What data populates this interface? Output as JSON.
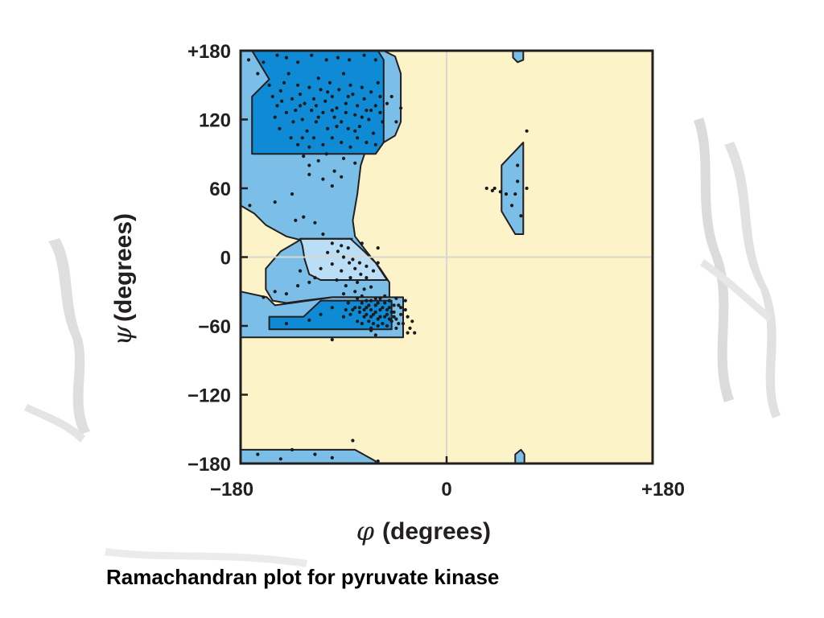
{
  "caption": "Ramachandran plot for pyruvate kinase",
  "chart_data": {
    "type": "scatter",
    "title": "",
    "xlabel": {
      "symbol": "φ",
      "text": "(degrees)"
    },
    "ylabel": {
      "symbol": "ψ",
      "text": "(degrees)"
    },
    "xlim": [
      -180,
      180
    ],
    "ylim": [
      -180,
      180
    ],
    "x_ticks": [
      {
        "value": -180,
        "label": "−180"
      },
      {
        "value": 0,
        "label": "0"
      },
      {
        "value": 180,
        "label": "+180"
      }
    ],
    "y_ticks": [
      {
        "value": 180,
        "label": "+180"
      },
      {
        "value": 120,
        "label": "120"
      },
      {
        "value": 60,
        "label": "60"
      },
      {
        "value": 0,
        "label": "0"
      },
      {
        "value": -60,
        "label": "−60"
      },
      {
        "value": -120,
        "label": "−120"
      },
      {
        "value": -180,
        "label": "−180"
      }
    ],
    "zero_lines": true,
    "colors": {
      "background": "#fdf3c8",
      "allowed": "#7bbfe8",
      "bridge": "#b9def6",
      "favored": "#0f8ad4",
      "outline": "#231f20",
      "points": "#1a1a1a",
      "zero_line": "#d8d8d0"
    },
    "regions": [
      {
        "name": "allowed-beta-alpha",
        "level": "allowed",
        "path": [
          [
            -180,
            180
          ],
          [
            -155,
            180
          ],
          [
            -135,
            180
          ],
          [
            -55,
            180
          ],
          [
            -45,
            175
          ],
          [
            -40,
            160
          ],
          [
            -40,
            118
          ],
          [
            -45,
            106
          ],
          [
            -55,
            100
          ],
          [
            -70,
            95
          ],
          [
            -75,
            80
          ],
          [
            -78,
            55
          ],
          [
            -82,
            32
          ],
          [
            -80,
            18
          ],
          [
            -70,
            5
          ],
          [
            -58,
            -10
          ],
          [
            -50,
            -22
          ],
          [
            -50,
            -35
          ],
          [
            -100,
            -35
          ],
          [
            -125,
            -38
          ],
          [
            -140,
            -40
          ],
          [
            -152,
            -38
          ],
          [
            -158,
            -28
          ],
          [
            -158,
            -10
          ],
          [
            -145,
            5
          ],
          [
            -128,
            15
          ],
          [
            -140,
            18
          ],
          [
            -158,
            28
          ],
          [
            -168,
            38
          ],
          [
            -180,
            45
          ]
        ]
      },
      {
        "name": "allowed-alpha-lower",
        "level": "allowed",
        "path": [
          [
            -180,
            -30
          ],
          [
            -157,
            -35
          ],
          [
            -150,
            -42
          ],
          [
            -135,
            -40
          ],
          [
            -100,
            -35
          ],
          [
            -38,
            -35
          ],
          [
            -38,
            -70
          ],
          [
            -180,
            -70
          ]
        ]
      },
      {
        "name": "allowed-beta-bottom",
        "level": "allowed",
        "path": [
          [
            -180,
            -168
          ],
          [
            -115,
            -168
          ],
          [
            -80,
            -168
          ],
          [
            -62,
            -178
          ],
          [
            -62,
            -180
          ],
          [
            -180,
            -180
          ]
        ]
      },
      {
        "name": "allowed-left-handed",
        "level": "allowed",
        "path": [
          [
            48,
            80
          ],
          [
            67,
            100
          ],
          [
            67,
            20
          ],
          [
            60,
            20
          ],
          [
            48,
            40
          ]
        ]
      },
      {
        "name": "allowed-top-sliver",
        "level": "allowed",
        "path": [
          [
            58,
            180
          ],
          [
            67,
            180
          ],
          [
            67,
            172
          ],
          [
            62,
            170
          ],
          [
            58,
            174
          ]
        ]
      },
      {
        "name": "allowed-bottom-sliver",
        "level": "allowed",
        "path": [
          [
            60,
            -180
          ],
          [
            68,
            -180
          ],
          [
            68,
            -172
          ],
          [
            65,
            -168
          ],
          [
            60,
            -172
          ]
        ]
      },
      {
        "name": "bridge",
        "level": "bridge",
        "path": [
          [
            -128,
            16
          ],
          [
            -84,
            16
          ],
          [
            -72,
            5
          ],
          [
            -62,
            -5
          ],
          [
            -52,
            -20
          ],
          [
            -110,
            -20
          ],
          [
            -120,
            -15
          ],
          [
            -124,
            -2
          ],
          [
            -126,
            10
          ]
        ]
      },
      {
        "name": "favored-beta",
        "level": "favored",
        "path": [
          [
            -170,
            180
          ],
          [
            -60,
            180
          ],
          [
            -55,
            172
          ],
          [
            -55,
            100
          ],
          [
            -62,
            90
          ],
          [
            -170,
            90
          ],
          [
            -170,
            140
          ],
          [
            -160,
            150
          ],
          [
            -155,
            155
          ]
        ]
      },
      {
        "name": "favored-alpha",
        "level": "favored",
        "path": [
          [
            -110,
            -38
          ],
          [
            -48,
            -38
          ],
          [
            -48,
            -63
          ],
          [
            -155,
            -63
          ],
          [
            -155,
            -52
          ],
          [
            -125,
            -52
          ]
        ]
      }
    ],
    "internal_lines": [
      {
        "name": "contour-upper",
        "path": [
          [
            -128,
            16
          ],
          [
            -82,
            16
          ]
        ]
      },
      {
        "name": "contour-lower",
        "path": [
          [
            -110,
            -20
          ],
          [
            -52,
            -20
          ]
        ]
      }
    ],
    "points": [
      [
        -173,
        172
      ],
      [
        -160,
        170
      ],
      [
        -148,
        176
      ],
      [
        -140,
        174
      ],
      [
        -130,
        170
      ],
      [
        -118,
        176
      ],
      [
        -105,
        172
      ],
      [
        -95,
        174
      ],
      [
        -85,
        172
      ],
      [
        -72,
        176
      ],
      [
        -62,
        172
      ],
      [
        -165,
        160
      ],
      [
        -155,
        150
      ],
      [
        -152,
        140
      ],
      [
        -148,
        132
      ],
      [
        -145,
        145
      ],
      [
        -142,
        152
      ],
      [
        -138,
        160
      ],
      [
        -135,
        138
      ],
      [
        -132,
        128
      ],
      [
        -130,
        150
      ],
      [
        -128,
        142
      ],
      [
        -126,
        120
      ],
      [
        -124,
        134
      ],
      [
        -122,
        110
      ],
      [
        -120,
        148
      ],
      [
        -118,
        128
      ],
      [
        -116,
        138
      ],
      [
        -114,
        118
      ],
      [
        -112,
        156
      ],
      [
        -110,
        146
      ],
      [
        -108,
        126
      ],
      [
        -106,
        136
      ],
      [
        -104,
        112
      ],
      [
        -102,
        152
      ],
      [
        -100,
        140
      ],
      [
        -98,
        122
      ],
      [
        -96,
        130
      ],
      [
        -94,
        146
      ],
      [
        -92,
        118
      ],
      [
        -90,
        160
      ],
      [
        -88,
        134
      ],
      [
        -86,
        112
      ],
      [
        -84,
        150
      ],
      [
        -82,
        142
      ],
      [
        -80,
        124
      ],
      [
        -78,
        132
      ],
      [
        -76,
        114
      ],
      [
        -74,
        148
      ],
      [
        -72,
        138
      ],
      [
        -70,
        128
      ],
      [
        -68,
        120
      ],
      [
        -66,
        144
      ],
      [
        -64,
        108
      ],
      [
        -62,
        132
      ],
      [
        -60,
        152
      ],
      [
        -58,
        126
      ],
      [
        -56,
        118
      ],
      [
        -52,
        134
      ],
      [
        -48,
        140
      ],
      [
        -44,
        118
      ],
      [
        -40,
        130
      ],
      [
        -150,
        122
      ],
      [
        -146,
        112
      ],
      [
        -140,
        126
      ],
      [
        -136,
        104
      ],
      [
        -134,
        118
      ],
      [
        -130,
        98
      ],
      [
        -126,
        104
      ],
      [
        -120,
        96
      ],
      [
        -116,
        104
      ],
      [
        -108,
        98
      ],
      [
        -100,
        104
      ],
      [
        -92,
        100
      ],
      [
        -84,
        96
      ],
      [
        -78,
        104
      ],
      [
        -70,
        100
      ],
      [
        -62,
        98
      ],
      [
        -144,
        136
      ],
      [
        -114,
        132
      ],
      [
        -104,
        144
      ],
      [
        -96,
        114
      ],
      [
        -88,
        126
      ],
      [
        -80,
        110
      ],
      [
        -74,
        122
      ],
      [
        -66,
        128
      ],
      [
        -58,
        140
      ],
      [
        -128,
        132
      ],
      [
        -112,
        122
      ],
      [
        -100,
        128
      ],
      [
        -86,
        140
      ],
      [
        -125,
        88
      ],
      [
        -120,
        80
      ],
      [
        -112,
        84
      ],
      [
        -105,
        90
      ],
      [
        -98,
        75
      ],
      [
        -90,
        86
      ],
      [
        -80,
        82
      ],
      [
        -120,
        72
      ],
      [
        -100,
        62
      ],
      [
        -108,
        68
      ],
      [
        -92,
        70
      ],
      [
        -135,
        55
      ],
      [
        -150,
        48
      ],
      [
        -172,
        45
      ],
      [
        -125,
        35
      ],
      [
        -132,
        32
      ],
      [
        -115,
        30
      ],
      [
        -108,
        20
      ],
      [
        -100,
        12
      ],
      [
        -95,
        5
      ],
      [
        -90,
        0
      ],
      [
        -85,
        -5
      ],
      [
        -80,
        -10
      ],
      [
        -75,
        -15
      ],
      [
        -70,
        -8
      ],
      [
        -92,
        -12
      ],
      [
        -84,
        -18
      ],
      [
        -78,
        -22
      ],
      [
        -100,
        -6
      ],
      [
        -88,
        -25
      ],
      [
        -82,
        -2
      ],
      [
        -76,
        -5
      ],
      [
        -70,
        -18
      ],
      [
        -64,
        -12
      ],
      [
        -60,
        -5
      ],
      [
        -66,
        -26
      ],
      [
        -72,
        -28
      ],
      [
        -96,
        -20
      ],
      [
        -80,
        -30
      ],
      [
        -90,
        -32
      ],
      [
        -110,
        -10
      ],
      [
        -115,
        -18
      ],
      [
        -120,
        -22
      ],
      [
        -130,
        -25
      ],
      [
        -140,
        -32
      ],
      [
        -128,
        -12
      ],
      [
        -150,
        -30
      ],
      [
        -160,
        -35
      ],
      [
        -86,
        8
      ],
      [
        -92,
        10
      ],
      [
        -104,
        4
      ],
      [
        -60,
        8
      ],
      [
        -74,
        12
      ],
      [
        -78,
        -36
      ],
      [
        -74,
        -40
      ],
      [
        -70,
        -44
      ],
      [
        -66,
        -38
      ],
      [
        -62,
        -42
      ],
      [
        -58,
        -46
      ],
      [
        -54,
        -40
      ],
      [
        -50,
        -44
      ],
      [
        -46,
        -48
      ],
      [
        -42,
        -42
      ],
      [
        -76,
        -48
      ],
      [
        -72,
        -52
      ],
      [
        -68,
        -56
      ],
      [
        -64,
        -50
      ],
      [
        -60,
        -54
      ],
      [
        -56,
        -58
      ],
      [
        -52,
        -50
      ],
      [
        -48,
        -56
      ],
      [
        -44,
        -54
      ],
      [
        -40,
        -50
      ],
      [
        -80,
        -44
      ],
      [
        -84,
        -50
      ],
      [
        -86,
        -40
      ],
      [
        -74,
        -34
      ],
      [
        -70,
        -38
      ],
      [
        -66,
        -46
      ],
      [
        -62,
        -48
      ],
      [
        -58,
        -36
      ],
      [
        -54,
        -52
      ],
      [
        -50,
        -38
      ],
      [
        -46,
        -42
      ],
      [
        -42,
        -58
      ],
      [
        -76,
        -44
      ],
      [
        -72,
        -46
      ],
      [
        -68,
        -42
      ],
      [
        -64,
        -58
      ],
      [
        -60,
        -40
      ],
      [
        -56,
        -44
      ],
      [
        -52,
        -46
      ],
      [
        -48,
        -48
      ],
      [
        -44,
        -36
      ],
      [
        -40,
        -44
      ],
      [
        -70,
        -50
      ],
      [
        -66,
        -52
      ],
      [
        -62,
        -36
      ],
      [
        -58,
        -52
      ],
      [
        -54,
        -34
      ],
      [
        -50,
        -54
      ],
      [
        -46,
        -52
      ],
      [
        -78,
        -56
      ],
      [
        -74,
        -58
      ],
      [
        -82,
        -46
      ],
      [
        -88,
        -46
      ],
      [
        -90,
        -52
      ],
      [
        -66,
        -62
      ],
      [
        -60,
        -60
      ],
      [
        -52,
        -60
      ],
      [
        -44,
        -62
      ],
      [
        -38,
        -58
      ],
      [
        -36,
        -46
      ],
      [
        -34,
        -52
      ],
      [
        -32,
        -62
      ],
      [
        -36,
        -38
      ],
      [
        -30,
        -56
      ],
      [
        -28,
        -66
      ],
      [
        -34,
        -66
      ],
      [
        -110,
        -50
      ],
      [
        -120,
        -55
      ],
      [
        -140,
        -58
      ],
      [
        -100,
        -44
      ],
      [
        -100,
        -72
      ],
      [
        -62,
        -68
      ],
      [
        -66,
        -64
      ],
      [
        35,
        60
      ],
      [
        40,
        58
      ],
      [
        42,
        60
      ],
      [
        47,
        57
      ],
      [
        52,
        55
      ],
      [
        60,
        55
      ],
      [
        62,
        66
      ],
      [
        62,
        80
      ],
      [
        57,
        45
      ],
      [
        65,
        36
      ],
      [
        70,
        60
      ],
      [
        70,
        110
      ],
      [
        -165,
        -172
      ],
      [
        -145,
        -176
      ],
      [
        -135,
        -168
      ],
      [
        -115,
        -172
      ],
      [
        -100,
        -175
      ],
      [
        -82,
        -160
      ],
      [
        -60,
        -178
      ]
    ]
  }
}
